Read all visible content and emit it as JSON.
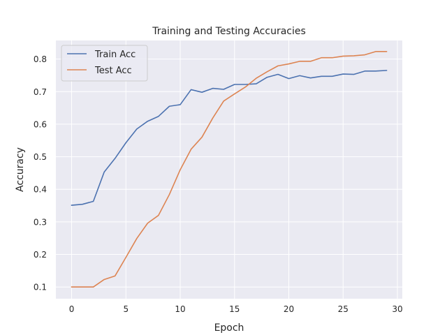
{
  "chart_data": {
    "type": "line",
    "title": "Training and Testing Accuracies",
    "xlabel": "Epoch",
    "ylabel": "Accuracy",
    "xlim": [
      -1.45,
      30.45
    ],
    "ylim": [
      0.064,
      0.857
    ],
    "xticks": [
      0,
      5,
      10,
      15,
      20,
      25,
      30
    ],
    "yticks": [
      0.1,
      0.2,
      0.3,
      0.4,
      0.5,
      0.6,
      0.7,
      0.8
    ],
    "grid": true,
    "legend_position": "upper-left",
    "x": [
      0,
      1,
      2,
      3,
      4,
      5,
      6,
      7,
      8,
      9,
      10,
      11,
      12,
      13,
      14,
      15,
      16,
      17,
      18,
      19,
      20,
      21,
      22,
      23,
      24,
      25,
      26,
      27,
      28,
      29
    ],
    "series": [
      {
        "name": "Train Acc",
        "color": "#4c72b0",
        "values": [
          0.351,
          0.354,
          0.363,
          0.453,
          0.495,
          0.543,
          0.585,
          0.609,
          0.624,
          0.655,
          0.66,
          0.706,
          0.698,
          0.71,
          0.707,
          0.722,
          0.722,
          0.724,
          0.744,
          0.753,
          0.74,
          0.749,
          0.742,
          0.747,
          0.747,
          0.754,
          0.753,
          0.763,
          0.763,
          0.765
        ]
      },
      {
        "name": "Test Acc",
        "color": "#dd8452",
        "values": [
          0.1,
          0.1,
          0.1,
          0.123,
          0.134,
          0.191,
          0.249,
          0.296,
          0.32,
          0.384,
          0.46,
          0.523,
          0.56,
          0.619,
          0.671,
          0.693,
          0.714,
          0.741,
          0.761,
          0.779,
          0.785,
          0.793,
          0.793,
          0.804,
          0.804,
          0.809,
          0.81,
          0.813,
          0.823,
          0.823
        ]
      }
    ]
  },
  "style": {
    "plot_background": "#eaeaf2",
    "grid_color": "#ffffff",
    "text_color": "#262626"
  }
}
